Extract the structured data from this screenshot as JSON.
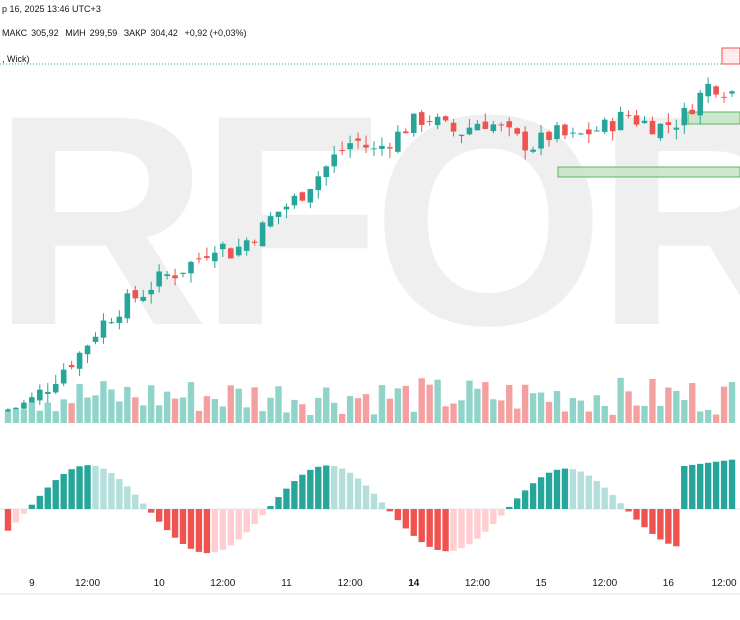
{
  "header": {
    "datetime": "р 16, 2025 13:46 UTC+3",
    "high_label": "МАКС",
    "high": "305,92",
    "low_label": "МИН",
    "low": "299,59",
    "close_label": "ЗАКР",
    "close": "304,42",
    "change": "+0,92 (+0,03%)",
    "series_info": ", Wick)"
  },
  "watermark": "RFOREX.c",
  "colors": {
    "up": "#26a69a",
    "down": "#ef5350",
    "up_light": "#b2dfdb",
    "down_light": "#ffcdd2",
    "zone_green": "#4caf50",
    "zone_red": "#ef5350"
  },
  "chart_data": {
    "type": "candlestick",
    "x_ticks": [
      {
        "label": "9",
        "bar": 3
      },
      {
        "label": "12:00",
        "bar": 10
      },
      {
        "label": "10",
        "bar": 19
      },
      {
        "label": "12:00",
        "bar": 27
      },
      {
        "label": "11",
        "bar": 35
      },
      {
        "label": "12:00",
        "bar": 43
      },
      {
        "label": "14",
        "bar": 51
      },
      {
        "label": "12:00",
        "bar": 59
      },
      {
        "label": "15",
        "bar": 67
      },
      {
        "label": "12:00",
        "bar": 75
      },
      {
        "label": "16",
        "bar": 83
      },
      {
        "label": "12:00",
        "bar": 90
      }
    ],
    "price_close": [
      35,
      36,
      37,
      40,
      43,
      47,
      50,
      53,
      58,
      62,
      65,
      68,
      70,
      72,
      75,
      77,
      78,
      80,
      82,
      85,
      88,
      84,
      86,
      89,
      91,
      95,
      98,
      100,
      103,
      107,
      110,
      114,
      117,
      120,
      118,
      116,
      119,
      121,
      124,
      126,
      127,
      125,
      123,
      122,
      124,
      126,
      125,
      123,
      121,
      119,
      118,
      120,
      122,
      121,
      120,
      122,
      123,
      124,
      126,
      128,
      126,
      125,
      124,
      125,
      126,
      130,
      134,
      138,
      136,
      135
    ]
  }
}
